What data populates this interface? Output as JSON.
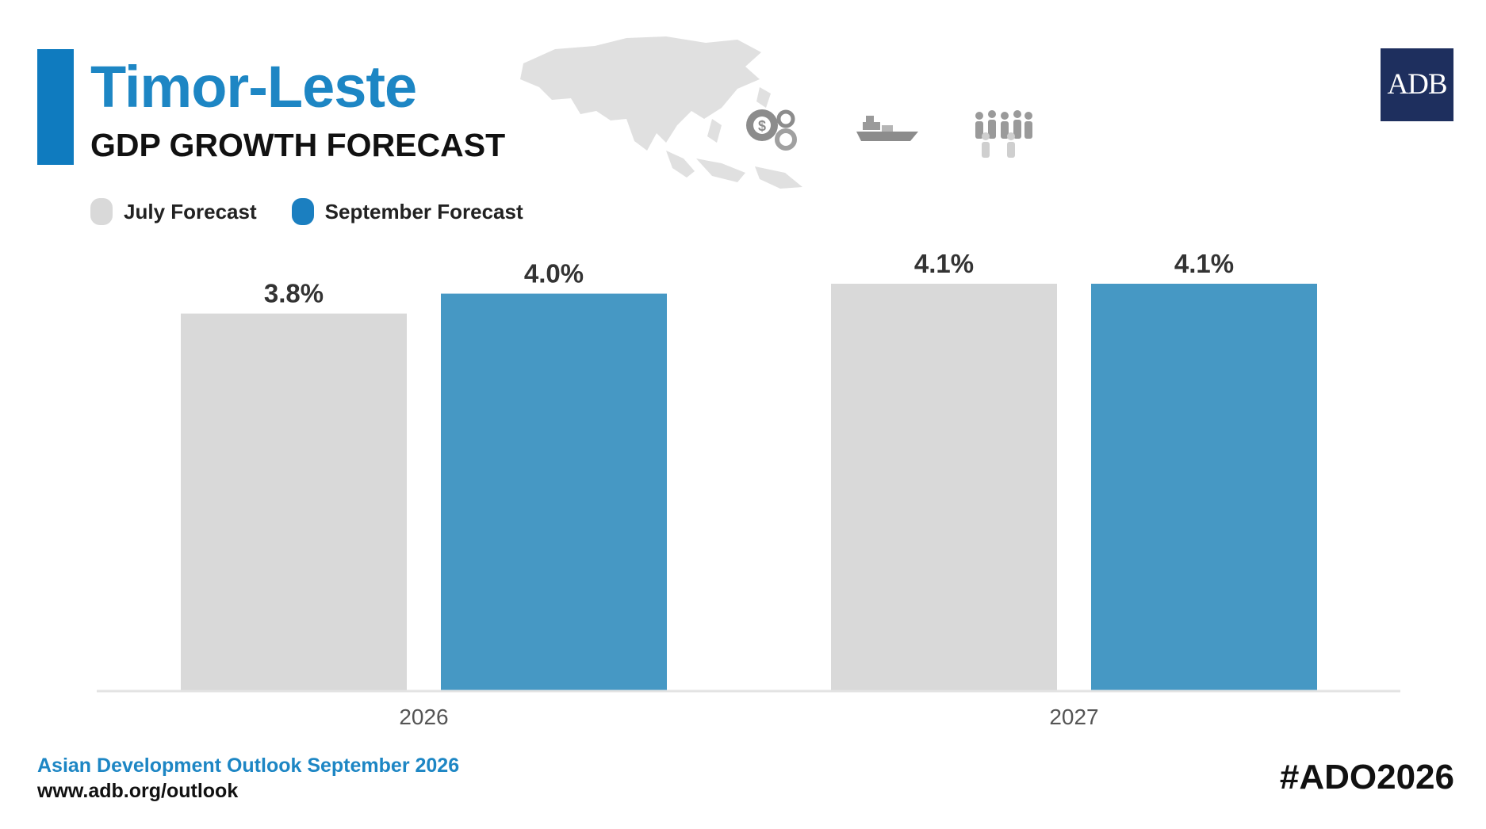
{
  "header": {
    "country": "Timor-Leste",
    "subtitle": "GDP GROWTH FORECAST",
    "logo_text": "ADB"
  },
  "theme_icons": [
    "gear-dollar-icon",
    "cargo-ship-icon",
    "people-group-icon"
  ],
  "legend": [
    {
      "label": "July Forecast",
      "color": "#d9d9d9"
    },
    {
      "label": "September Forecast",
      "color": "#1b7fc0"
    }
  ],
  "chart_data": {
    "type": "bar",
    "categories": [
      "2026",
      "2027"
    ],
    "series": [
      {
        "name": "July Forecast",
        "values": [
          3.8,
          4.1
        ],
        "labels": [
          "3.8%",
          "4.1%"
        ],
        "color": "#d9d9d9"
      },
      {
        "name": "September Forecast",
        "values": [
          4.0,
          4.1
        ],
        "labels": [
          "4.0%",
          "4.1%"
        ],
        "color": "#4698c4"
      }
    ],
    "ylim": [
      0,
      4.1
    ],
    "grid": false,
    "legend_position": "top-left"
  },
  "footer": {
    "title": "Asian Development Outlook September 2026",
    "url": "www.adb.org/outlook",
    "hashtag": "#ADO2026"
  }
}
